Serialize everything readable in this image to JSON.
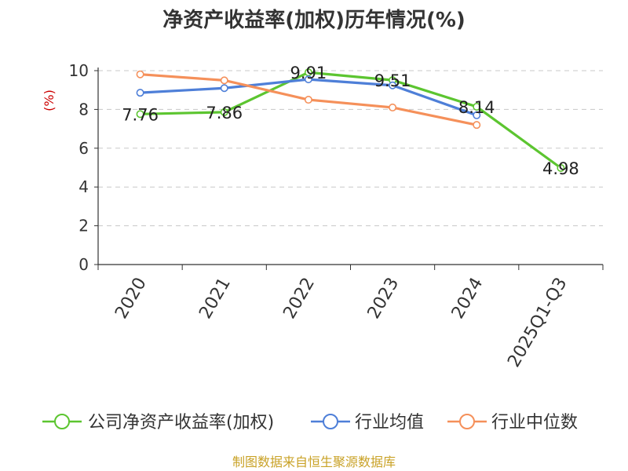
{
  "chart_data": {
    "type": "line",
    "title": "净资产收益率(加权)历年情况(%)",
    "ylabel": "(%)",
    "xlabel": "",
    "ylim": [
      0,
      10
    ],
    "yticks": [
      0,
      2,
      4,
      6,
      8,
      10
    ],
    "grid": true,
    "legend_position": "bottom",
    "categories": [
      "2020",
      "2021",
      "2022",
      "2023",
      "2024",
      "2025Q1-Q3"
    ],
    "series": [
      {
        "name": "公司净资产收益率(加权)",
        "color": "#5cc530",
        "values": [
          7.76,
          7.86,
          9.91,
          9.51,
          8.14,
          4.98
        ],
        "labels": [
          "7.76",
          "7.86",
          "9.91",
          "9.51",
          "8.14",
          "4.98"
        ]
      },
      {
        "name": "行业均值",
        "color": "#4e7fd8",
        "values": [
          8.86,
          9.1,
          9.55,
          9.24,
          7.7,
          null
        ]
      },
      {
        "name": "行业中位数",
        "color": "#f5905a",
        "values": [
          9.81,
          9.5,
          8.5,
          8.1,
          7.2,
          null
        ]
      }
    ]
  },
  "footer": {
    "source": "制图数据来自恒生聚源数据库"
  }
}
